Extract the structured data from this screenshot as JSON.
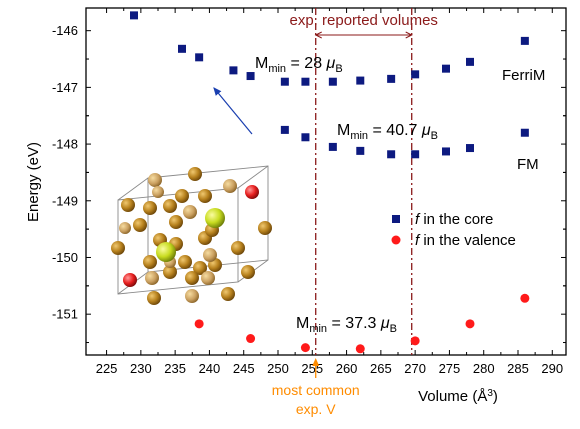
{
  "chart_data": {
    "type": "scatter",
    "xlabel": "Volume",
    "xlabel_unit": "(Å",
    "xlabel_unit_sup": "3",
    "xlabel_unit_end": ")",
    "ylabel": "Energy (eV)",
    "xlim": [
      222,
      292
    ],
    "ylim": [
      -151.72,
      -145.6
    ],
    "xticks": [
      225,
      230,
      235,
      240,
      245,
      250,
      255,
      260,
      265,
      270,
      275,
      280,
      285,
      290
    ],
    "yticks": [
      -146,
      -147,
      -148,
      -149,
      -150,
      -151
    ],
    "ytick_labels": [
      "-146",
      "-147",
      "-148",
      "-149",
      "-150",
      "-151"
    ],
    "series": [
      {
        "marker": "square",
        "color": "#0d1a80",
        "x": [
          229,
          236,
          238.5,
          243.5,
          246,
          251,
          254,
          258,
          262,
          266.5,
          270,
          274.5,
          278,
          286
        ],
        "y": [
          -145.73,
          -146.32,
          -146.47,
          -146.7,
          -146.8,
          -146.9,
          -146.9,
          -146.9,
          -146.88,
          -146.85,
          -146.77,
          -146.67,
          -146.55,
          -146.18
        ]
      },
      {
        "marker": "square",
        "color": "#0d1a80",
        "x": [
          251,
          254,
          258,
          262,
          266.5,
          270,
          274.5,
          278,
          286
        ],
        "y": [
          -147.75,
          -147.88,
          -148.05,
          -148.12,
          -148.18,
          -148.18,
          -148.13,
          -148.07,
          -147.8
        ]
      },
      {
        "marker": "circle",
        "color": "#ff1a1a",
        "x": [
          238.5,
          246,
          254,
          262,
          270,
          278,
          286
        ],
        "y": [
          -151.17,
          -151.43,
          -151.59,
          -151.61,
          -151.47,
          -151.17,
          -150.72
        ]
      }
    ],
    "legend": {
      "placement": "right",
      "entries": [
        {
          "italic": "f",
          "text": " in the core",
          "marker": "square",
          "color": "#0d1a80"
        },
        {
          "italic": "f",
          "text": " in the valence",
          "marker": "circle",
          "color": "#ff1a1a"
        }
      ]
    },
    "annotations": {
      "exp_range": {
        "label": "exp. reported volumes",
        "x_start": 255.5,
        "x_end": 269.5,
        "color": "#8b1a1a"
      },
      "most_common": {
        "line1": "most common",
        "line2": "exp. V",
        "x": 255.5,
        "color": "#ff8c00"
      },
      "labels": [
        {
          "prefix": "M",
          "sub": "min",
          "eq": " = 28 ",
          "mu": "μ",
          "musub": "B"
        },
        {
          "prefix": "M",
          "sub": "min",
          "eq": " = 40.7 ",
          "mu": "μ",
          "musub": "B"
        },
        {
          "prefix": "M",
          "sub": "min",
          "eq": " = 37.3 ",
          "mu": "μ",
          "musub": "B"
        }
      ],
      "ferrim": "FerriM",
      "fm": "FM"
    }
  }
}
